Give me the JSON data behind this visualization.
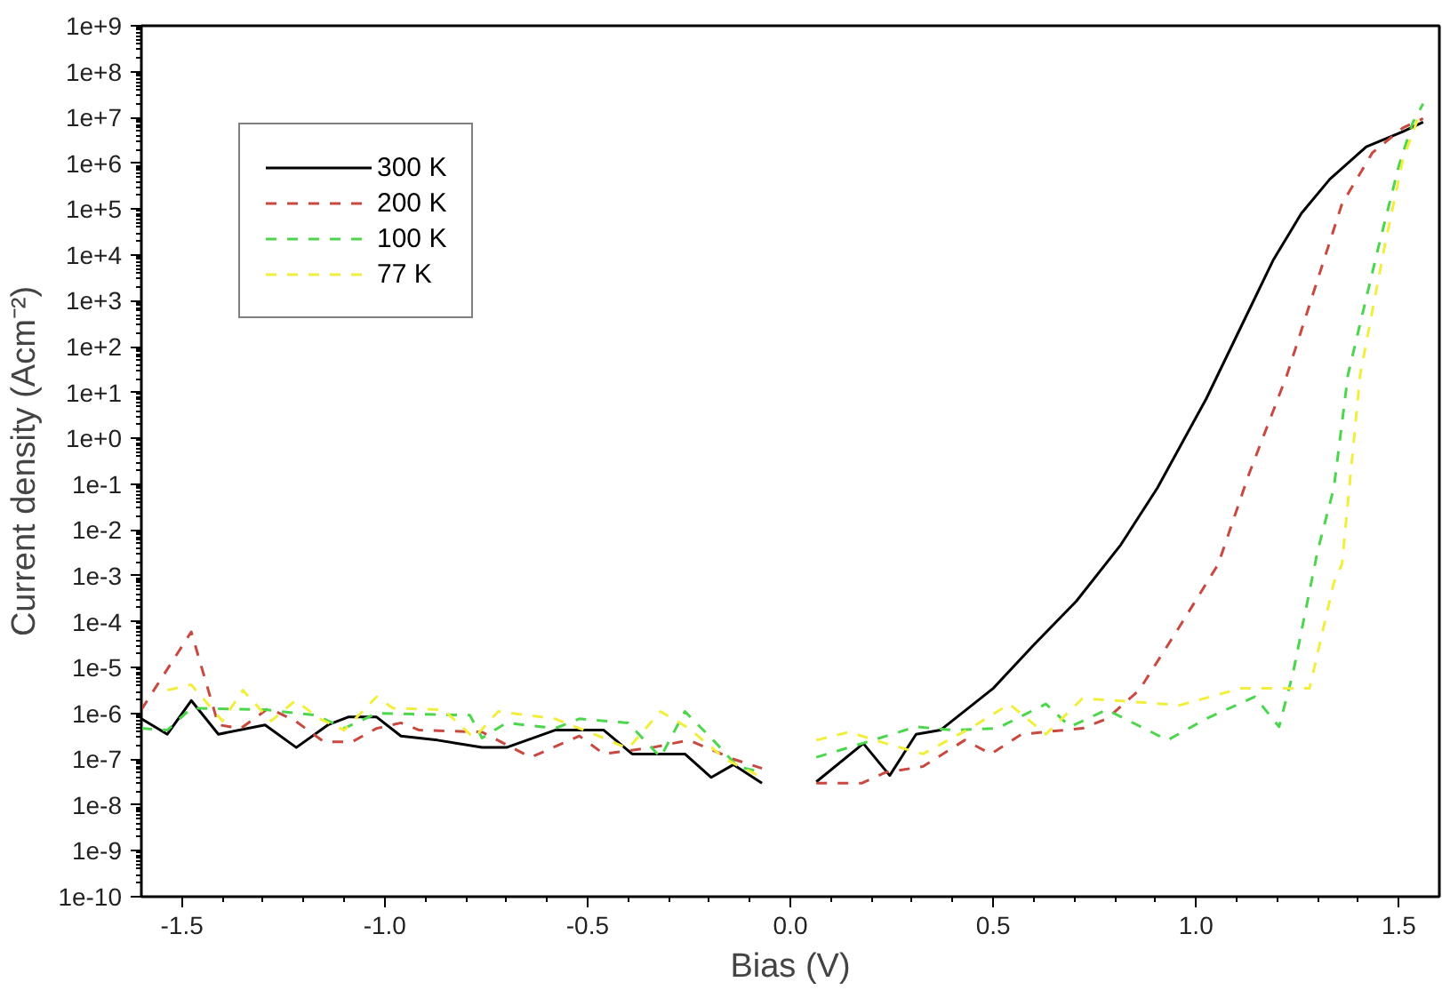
{
  "chart_data": {
    "type": "line",
    "xlabel": "Bias (V)",
    "ylabel": "Current density (Acm⁻²)",
    "log": "y",
    "grid": false,
    "legend": "top left",
    "marker": "none",
    "xlim": [
      -1.6,
      1.6
    ],
    "ylim": [
      1e-10,
      1000000000.0
    ],
    "xticks": [
      {
        "value": -1.5,
        "label": "-1.5"
      },
      {
        "value": -1.0,
        "label": "-1.0"
      },
      {
        "value": -0.5,
        "label": "-0.5"
      },
      {
        "value": 0.0,
        "label": "0.0"
      },
      {
        "value": 0.5,
        "label": "0.5"
      },
      {
        "value": 1.0,
        "label": "1.0"
      },
      {
        "value": 1.5,
        "label": "1.5"
      }
    ],
    "yticks": [
      {
        "value": 1e-10,
        "label": "1e-10"
      },
      {
        "value": 1e-09,
        "label": "1e-9"
      },
      {
        "value": 1e-08,
        "label": "1e-8"
      },
      {
        "value": 1e-07,
        "label": "1e-7"
      },
      {
        "value": 1e-06,
        "label": "1e-6"
      },
      {
        "value": 1e-05,
        "label": "1e-5"
      },
      {
        "value": 0.0001,
        "label": "1e-4"
      },
      {
        "value": 0.001,
        "label": "1e-3"
      },
      {
        "value": 0.01,
        "label": "1e-2"
      },
      {
        "value": 0.1,
        "label": "1e-1"
      },
      {
        "value": 1,
        "label": "1e+0"
      },
      {
        "value": 10,
        "label": "1e+1"
      },
      {
        "value": 100,
        "label": "1e+2"
      },
      {
        "value": 1000,
        "label": "1e+3"
      },
      {
        "value": 10000,
        "label": "1e+4"
      },
      {
        "value": 100000,
        "label": "1e+5"
      },
      {
        "value": 1000000,
        "label": "1e+6"
      },
      {
        "value": 10000000,
        "label": "1e+7"
      },
      {
        "value": 100000000,
        "label": "1e+8"
      },
      {
        "value": 1000000000,
        "label": "1e+9"
      }
    ],
    "series": [
      {
        "name": "300 K",
        "color": "#000000",
        "line_style": "solid",
        "x": [
          -1.6,
          -1.536,
          -1.477,
          -1.41,
          -1.295,
          -1.218,
          -1.14,
          -1.09,
          -1.02,
          -0.96,
          -0.87,
          -0.76,
          -0.7,
          -0.58,
          -0.46,
          -0.39,
          -0.26,
          -0.195,
          -0.14,
          -0.07,
          0.0,
          0.064,
          0.18,
          0.245,
          0.31,
          0.37,
          0.5,
          0.6,
          0.705,
          0.815,
          0.905,
          1.025,
          1.115,
          1.19,
          1.26,
          1.33,
          1.42,
          1.51,
          1.56
        ],
        "values": [
          7.6e-07,
          3.5e-07,
          1.9e-06,
          3.5e-07,
          5.6e-07,
          1.8e-07,
          5.6e-07,
          8.3e-07,
          8.3e-07,
          3.2e-07,
          2.6e-07,
          1.8e-07,
          1.8e-07,
          4.3e-07,
          4.3e-07,
          1.3e-07,
          1.3e-07,
          4e-08,
          7.6e-08,
          3e-08,
          null,
          3.2e-08,
          2.2e-07,
          4.4e-08,
          3.5e-07,
          4.3e-07,
          3.5e-06,
          3.1e-05,
          0.00028,
          0.0048,
          0.083,
          7.2,
          320,
          7600,
          81000.0,
          450000.0,
          2300000.0,
          4900000.0,
          7900000.0
        ]
      },
      {
        "name": "200 K",
        "color": "#c9483f",
        "line_style": "dashed",
        "x": [
          -1.6,
          -1.477,
          -1.41,
          -1.355,
          -1.286,
          -1.22,
          -1.15,
          -1.08,
          -1.02,
          -0.96,
          -0.915,
          -0.76,
          -0.64,
          -0.52,
          -0.46,
          -0.34,
          -0.25,
          -0.14,
          -0.07,
          0.0,
          0.064,
          0.177,
          0.236,
          0.327,
          0.43,
          0.495,
          0.57,
          0.72,
          0.78,
          0.86,
          0.96,
          1.055,
          1.13,
          1.225,
          1.3,
          1.36,
          1.435,
          1.51,
          1.56
        ],
        "values": [
          1.2e-06,
          6e-05,
          5.6e-07,
          4.7e-07,
          1.3e-06,
          6.8e-07,
          2.4e-07,
          2.4e-07,
          4.7e-07,
          6.2e-07,
          4.3e-07,
          3.9e-07,
          1.1e-07,
          3.2e-07,
          1.3e-07,
          1.8e-07,
          2.6e-07,
          1e-07,
          6.3e-08,
          null,
          3e-08,
          3e-08,
          5.2e-08,
          6.9e-08,
          2.6e-07,
          1.3e-07,
          3.5e-07,
          4.7e-07,
          7.6e-07,
          3.2e-06,
          7.9e-05,
          0.0018,
          0.16,
          25,
          2900,
          130000.0,
          1700000.0,
          5900000.0,
          9500000.0
        ]
      },
      {
        "name": "100 K",
        "color": "#4cd64c",
        "line_style": "dashed",
        "x": [
          -1.6,
          -1.536,
          -1.477,
          -1.295,
          -1.17,
          -1.1,
          -1.02,
          -0.79,
          -0.76,
          -0.7,
          -0.58,
          -0.52,
          -0.4,
          -0.32,
          -0.26,
          -0.19,
          -0.13,
          -0.07,
          0.0,
          0.064,
          0.177,
          0.31,
          0.4,
          0.51,
          0.63,
          0.69,
          0.78,
          0.93,
          1.025,
          1.145,
          1.205,
          1.24,
          1.3,
          1.34,
          1.375,
          1.45,
          1.5,
          1.535,
          1.56
        ],
        "values": [
          4.7e-07,
          4.3e-07,
          1.3e-06,
          1.2e-06,
          9.1e-07,
          4.7e-07,
          1e-06,
          9.1e-07,
          2.9e-07,
          6.2e-07,
          4.7e-07,
          7.6e-07,
          6.2e-07,
          1.1e-07,
          1.1e-06,
          2.6e-07,
          6.9e-08,
          5.2e-08,
          null,
          1.1e-07,
          2.2e-07,
          5.1e-07,
          4.3e-07,
          4.7e-07,
          1.6e-06,
          5.1e-07,
          1.2e-06,
          2.6e-07,
          7.6e-07,
          2.3e-06,
          5.1e-07,
          8.1e-06,
          0.0035,
          0.083,
          25,
          15000.0,
          870000.0,
          7900000.0,
          20000000.0
        ]
      },
      {
        "name": "77 K",
        "color": "#f2ee3c",
        "line_style": "dashed",
        "x": [
          -1.536,
          -1.477,
          -1.4,
          -1.35,
          -1.28,
          -1.22,
          -1.16,
          -1.1,
          -1.02,
          -0.98,
          -0.855,
          -0.78,
          -0.72,
          -0.58,
          -0.46,
          -0.4,
          -0.32,
          -0.25,
          -0.16,
          -0.07,
          0.0,
          0.064,
          0.145,
          0.236,
          0.327,
          0.45,
          0.54,
          0.63,
          0.72,
          0.84,
          0.96,
          1.11,
          1.235,
          1.28,
          1.34,
          1.36,
          1.405,
          1.465,
          1.51,
          1.55
        ],
        "values": [
          3.2e-06,
          4.2e-06,
          6.8e-07,
          3.2e-06,
          6.8e-07,
          1.9e-06,
          7.6e-07,
          4.3e-07,
          2.3e-06,
          1.3e-06,
          1.2e-06,
          2.9e-07,
          1.1e-06,
          7.6e-07,
          2.9e-07,
          1.7e-07,
          1.1e-06,
          4.7e-07,
          1e-07,
          4e-08,
          null,
          2.6e-07,
          3.9e-07,
          2.2e-07,
          1.3e-07,
          5.1e-07,
          1.6e-06,
          3.5e-07,
          2.1e-06,
          1.8e-06,
          1.5e-06,
          3.5e-06,
          3.5e-06,
          3.5e-06,
          0.00071,
          0.0018,
          25,
          15000.0,
          1200000.0,
          11000000.0
        ]
      }
    ]
  }
}
